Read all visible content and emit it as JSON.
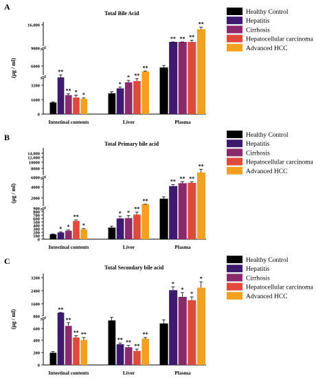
{
  "figure": {
    "legend_labels": [
      "Healthy Control",
      "Hepatitis",
      "Cirrhosis",
      "Hepatocellular carcinoma",
      "Advanced  HCC"
    ],
    "colors": [
      "#000000",
      "#3d1a6e",
      "#8a2a6a",
      "#e04a3c",
      "#f2a020"
    ]
  },
  "chart_data": [
    {
      "panel": "A",
      "type": "bar",
      "title": "Total Bile Acid",
      "ylabel": "(μg / ml)",
      "categories": [
        "Intestinal contents",
        "Liver",
        "Plasma"
      ],
      "legend": "right",
      "grid": false,
      "y_axis": "broken",
      "yticks": [
        "0",
        "1600",
        "3200",
        "6000",
        "9000",
        "16,000"
      ],
      "series": [
        {
          "name": "Healthy Control",
          "values": [
            950,
            1700,
            4600
          ],
          "errors": [
            60,
            120,
            400
          ],
          "sig": [
            "",
            "",
            ""
          ]
        },
        {
          "name": "Hepatitis",
          "values": [
            3000,
            2100,
            9300
          ],
          "errors": [
            200,
            100,
            600
          ],
          "sig": [
            "**",
            "*",
            "**"
          ]
        },
        {
          "name": "Cirrhosis",
          "values": [
            1550,
            2600,
            9700
          ],
          "errors": [
            100,
            150,
            900
          ],
          "sig": [
            "**",
            "*",
            "**"
          ]
        },
        {
          "name": "Hepatocellular carcinoma",
          "values": [
            1350,
            2700,
            10300
          ],
          "errors": [
            200,
            200,
            1200
          ],
          "sig": [
            "*",
            "**",
            "**"
          ]
        },
        {
          "name": "Advanced  HCC",
          "values": [
            1250,
            3700,
            14700
          ],
          "errors": [
            80,
            200,
            600
          ],
          "sig": [
            "*",
            "**",
            "**"
          ]
        }
      ]
    },
    {
      "panel": "B",
      "type": "bar",
      "title": "Total Primary bile acid",
      "ylabel": "(μg / ml)",
      "categories": [
        "Intestinal contents",
        "Liver",
        "Plasma"
      ],
      "legend": "right",
      "grid": false,
      "y_axis": "broken",
      "yticks": [
        "0",
        "100",
        "200",
        "300",
        "400",
        "500",
        "600",
        "700",
        "800",
        "900",
        "2000",
        "4000",
        "6000",
        "8000",
        "10000",
        "12,000",
        "14,000"
      ],
      "series": [
        {
          "name": "Healthy Control",
          "values": [
            140,
            330,
            2700
          ],
          "errors": [
            10,
            40,
            500
          ],
          "sig": [
            "",
            "",
            ""
          ]
        },
        {
          "name": "Hepatitis",
          "values": [
            190,
            590,
            6200
          ],
          "errors": [
            15,
            60,
            400
          ],
          "sig": [
            "*",
            "*",
            "**"
          ]
        },
        {
          "name": "Cirrhosis",
          "values": [
            240,
            600,
            7000
          ],
          "errors": [
            20,
            70,
            400
          ],
          "sig": [
            "*",
            "*",
            "**"
          ]
        },
        {
          "name": "Hepatocellular carcinoma",
          "values": [
            520,
            700,
            7100
          ],
          "errors": [
            30,
            70,
            300
          ],
          "sig": [
            "**",
            "**",
            "**"
          ]
        },
        {
          "name": "Advanced  HCC",
          "values": [
            280,
            930,
            9800
          ],
          "errors": [
            20,
            40,
            900
          ],
          "sig": [
            "*",
            "**",
            "**"
          ]
        }
      ]
    },
    {
      "panel": "C",
      "type": "bar",
      "title": "Total  Secondary bile acid",
      "ylabel": "(μg / ml)",
      "categories": [
        "Intestinal contents",
        "Liver",
        "Plasma"
      ],
      "legend": "right",
      "grid": false,
      "y_axis": "broken",
      "yticks": [
        "0",
        "200",
        "400",
        "600",
        "800",
        "1600",
        "2400",
        "3200"
      ],
      "series": [
        {
          "name": "Healthy Control",
          "values": [
            200,
            730,
            680
          ],
          "errors": [
            20,
            50,
            60
          ],
          "sig": [
            "",
            "",
            ""
          ]
        },
        {
          "name": "Hepatitis",
          "values": [
            1050,
            340,
            2450
          ],
          "errors": [
            60,
            20,
            200
          ],
          "sig": [
            "**",
            "**",
            "*"
          ]
        },
        {
          "name": "Cirrhosis",
          "values": [
            640,
            290,
            2050
          ],
          "errors": [
            50,
            30,
            250
          ],
          "sig": [
            "**",
            "**",
            "*"
          ]
        },
        {
          "name": "Hepatocellular carcinoma",
          "values": [
            450,
            230,
            1850
          ],
          "errors": [
            30,
            30,
            200
          ],
          "sig": [
            "**",
            "**",
            "*"
          ]
        },
        {
          "name": "Advanced  HCC",
          "values": [
            410,
            430,
            2600
          ],
          "errors": [
            40,
            20,
            350
          ],
          "sig": [
            "**",
            "**",
            "*"
          ]
        }
      ]
    }
  ]
}
